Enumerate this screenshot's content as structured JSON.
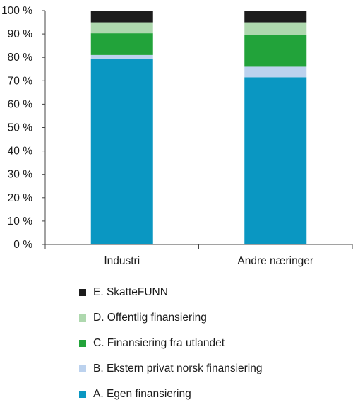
{
  "chart_data": {
    "type": "bar",
    "stacked": true,
    "categories": [
      "Industri",
      "Andre næringer"
    ],
    "series": [
      {
        "name": "A. Egen finansiering",
        "color": "#0a97c2",
        "values": [
          79.5,
          71.5
        ]
      },
      {
        "name": "B. Ekstern privat norsk finansiering",
        "color": "#bcd2ee",
        "values": [
          1.5,
          4.5
        ]
      },
      {
        "name": "C. Finansiering fra utlandet",
        "color": "#22a33a",
        "values": [
          9.3,
          13.7
        ]
      },
      {
        "name": "D. Offentlig finansiering",
        "color": "#aed8ae",
        "values": [
          4.7,
          5.3
        ]
      },
      {
        "name": "E. SkatteFUNN",
        "color": "#1c1c1c",
        "values": [
          5.0,
          5.0
        ]
      }
    ],
    "ylim": [
      0,
      100
    ],
    "yticks": [
      "0 %",
      "10 %",
      "20 %",
      "30 %",
      "40 %",
      "50 %",
      "60 %",
      "70 %",
      "80 %",
      "90 %",
      "100 %"
    ],
    "grid": false,
    "legend_position": "bottom"
  }
}
